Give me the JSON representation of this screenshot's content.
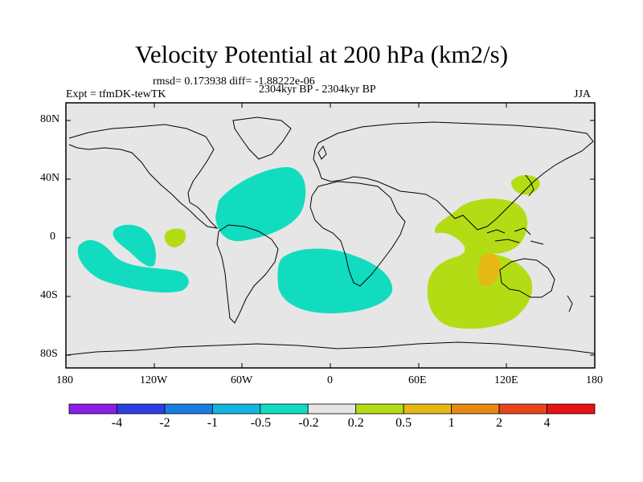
{
  "title": "Velocity Potential at 200 hPa (km2/s)",
  "stats": "rmsd= 0.173938 diff= -1.88222e-06",
  "experiment": "Expt = tfmDK-tewTK",
  "period": "2304kyr BP - 2304kyr BP",
  "season": "JJA",
  "lat_ticks": [
    "80N",
    "40N",
    "0",
    "40S",
    "80S"
  ],
  "lon_ticks": [
    "180",
    "120W",
    "60W",
    "0",
    "60E",
    "120E",
    "180"
  ],
  "legend": {
    "labels": [
      "-4",
      "-2",
      "-1",
      "-0.5",
      "-0.2",
      "0.2",
      "0.5",
      "1",
      "2",
      "4"
    ],
    "colors": [
      "#8a1ee6",
      "#2d3ee0",
      "#1a7de0",
      "#14b6e0",
      "#12dcc0",
      "#e6e6e6",
      "#b4dc14",
      "#e6b814",
      "#e68a14",
      "#e6461a",
      "#e61414"
    ]
  },
  "colors": {
    "land_outline": "#000000",
    "background_field": "#e6e6e6",
    "negative": "#12dcc0",
    "positive": "#b4dc14",
    "strong_positive": "#e6b814"
  }
}
